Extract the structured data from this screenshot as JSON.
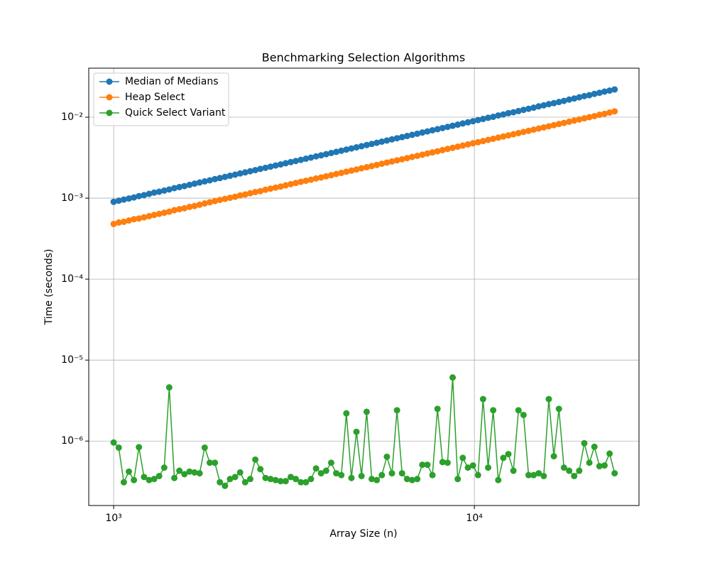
{
  "chart_data": {
    "type": "line",
    "title": "Benchmarking Selection Algorithms",
    "x_label": "Array Size (n)",
    "y_label": "Time (seconds)",
    "x_scale": "log",
    "y_scale": "log",
    "grid": true,
    "legend": "upper left",
    "xlim": [
      853,
      28600
    ],
    "ylim": [
      1.6e-07,
      0.0403
    ],
    "xticks": [
      {
        "value": 1000,
        "label": "10³"
      },
      {
        "value": 10000,
        "label": "10⁴"
      }
    ],
    "yticks": [
      {
        "value": 1e-06,
        "label": "10⁻⁶"
      },
      {
        "value": 1e-05,
        "label": "10⁻⁵"
      },
      {
        "value": 0.0001,
        "label": "10⁻⁴"
      },
      {
        "value": 0.001,
        "label": "10⁻³"
      },
      {
        "value": 0.01,
        "label": "10⁻²"
      }
    ],
    "x": [
      1000,
      1033,
      1067,
      1102,
      1138,
      1175,
      1214,
      1254,
      1295,
      1337,
      1381,
      1426,
      1473,
      1521,
      1571,
      1623,
      1676,
      1731,
      1788,
      1847,
      1908,
      1970,
      2035,
      2102,
      2171,
      2242,
      2315,
      2391,
      2470,
      2551,
      2636,
      2722,
      2811,
      2903,
      2998,
      3097,
      3198,
      3303,
      3411,
      3523,
      3640,
      3759,
      3882,
      4009,
      4141,
      4277,
      4417,
      4562,
      4711,
      4866,
      5028,
      5193,
      5363,
      5539,
      5720,
      5908,
      6102,
      6302,
      6508,
      6722,
      6945,
      7173,
      7408,
      7651,
      7902,
      8161,
      8429,
      8705,
      8991,
      9286,
      9596,
      9911,
      10236,
      10571,
      10918,
      11276,
      11646,
      12028,
      12422,
      12830,
      13250,
      13685,
      14134,
      14597,
      15076,
      15570,
      16081,
      16608,
      17153,
      17715,
      18310,
      18910,
      19530,
      20171,
      20832,
      21515,
      22221,
      22949,
      23702,
      24480
    ],
    "series": [
      {
        "name": "Median of Medians",
        "color": "#1f77b4",
        "values": [
          0.0009,
          0.00093,
          0.00096,
          0.00099,
          0.00102,
          0.00106,
          0.00109,
          0.00113,
          0.00117,
          0.0012,
          0.00124,
          0.00128,
          0.00133,
          0.00137,
          0.00141,
          0.00146,
          0.00151,
          0.00156,
          0.00161,
          0.00166,
          0.00172,
          0.00177,
          0.00183,
          0.00189,
          0.00195,
          0.00202,
          0.00208,
          0.00215,
          0.00222,
          0.0023,
          0.00237,
          0.00245,
          0.00253,
          0.00261,
          0.0027,
          0.00279,
          0.00288,
          0.00297,
          0.00307,
          0.00317,
          0.00328,
          0.00338,
          0.00349,
          0.00361,
          0.00373,
          0.00385,
          0.00398,
          0.00411,
          0.00424,
          0.00438,
          0.00453,
          0.00467,
          0.00483,
          0.00499,
          0.00515,
          0.00532,
          0.00549,
          0.00567,
          0.00586,
          0.00605,
          0.00625,
          0.00646,
          0.00667,
          0.00689,
          0.00711,
          0.00734,
          0.00759,
          0.00783,
          0.00809,
          0.00836,
          0.00864,
          0.00892,
          0.00921,
          0.00951,
          0.00983,
          0.0101,
          0.0105,
          0.0108,
          0.0112,
          0.0115,
          0.0119,
          0.0123,
          0.0127,
          0.0131,
          0.0136,
          0.014,
          0.0145,
          0.0149,
          0.0154,
          0.0159,
          0.0165,
          0.017,
          0.0176,
          0.0182,
          0.0187,
          0.0194,
          0.02,
          0.0207,
          0.0213,
          0.022
        ]
      },
      {
        "name": "Heap Select",
        "color": "#ff7f0e",
        "values": [
          0.00048,
          0.0005,
          0.00051,
          0.00053,
          0.00055,
          0.00056,
          0.00058,
          0.0006,
          0.00062,
          0.00064,
          0.00066,
          0.00068,
          0.00071,
          0.00073,
          0.00075,
          0.00078,
          0.0008,
          0.00083,
          0.00086,
          0.00089,
          0.00092,
          0.00095,
          0.00098,
          0.00101,
          0.00104,
          0.00108,
          0.00111,
          0.00115,
          0.00119,
          0.00122,
          0.00127,
          0.00131,
          0.00135,
          0.00139,
          0.00144,
          0.00149,
          0.00154,
          0.00159,
          0.00164,
          0.00169,
          0.00175,
          0.0018,
          0.00186,
          0.00192,
          0.00199,
          0.00205,
          0.00212,
          0.00219,
          0.00226,
          0.00234,
          0.00241,
          0.00249,
          0.00257,
          0.00266,
          0.00275,
          0.00284,
          0.00293,
          0.00302,
          0.00312,
          0.00323,
          0.00333,
          0.00344,
          0.00356,
          0.00367,
          0.00379,
          0.00392,
          0.00405,
          0.00418,
          0.00432,
          0.00446,
          0.00461,
          0.00476,
          0.00491,
          0.00507,
          0.00524,
          0.00541,
          0.00559,
          0.00577,
          0.00596,
          0.00616,
          0.00636,
          0.00657,
          0.00678,
          0.00701,
          0.00724,
          0.00747,
          0.00772,
          0.00797,
          0.00823,
          0.0085,
          0.00879,
          0.00908,
          0.00937,
          0.00968,
          0.01,
          0.0103,
          0.0107,
          0.011,
          0.0114,
          0.0118
        ]
      },
      {
        "name": "Quick Select Variant",
        "color": "#2ca02c",
        "values": [
          9.6e-07,
          8.3e-07,
          3.1e-07,
          4.2e-07,
          3.3e-07,
          8.4e-07,
          3.6e-07,
          3.3e-07,
          3.4e-07,
          3.7e-07,
          4.7e-07,
          4.6e-06,
          3.5e-07,
          4.3e-07,
          3.9e-07,
          4.2e-07,
          4.1e-07,
          4e-07,
          8.3e-07,
          5.4e-07,
          5.4e-07,
          3.1e-07,
          2.8e-07,
          3.4e-07,
          3.6e-07,
          4.1e-07,
          3.1e-07,
          3.4e-07,
          5.9e-07,
          4.5e-07,
          3.5e-07,
          3.4e-07,
          3.3e-07,
          3.2e-07,
          3.2e-07,
          3.6e-07,
          3.4e-07,
          3.1e-07,
          3.1e-07,
          3.4e-07,
          4.6e-07,
          4e-07,
          4.3e-07,
          5.4e-07,
          4e-07,
          3.8e-07,
          2.2e-06,
          3.5e-07,
          1.3e-06,
          3.7e-07,
          2.3e-06,
          3.4e-07,
          3.3e-07,
          3.8e-07,
          6.4e-07,
          4e-07,
          2.4e-06,
          4e-07,
          3.4e-07,
          3.3e-07,
          3.4e-07,
          5.1e-07,
          5.1e-07,
          3.8e-07,
          2.5e-06,
          5.5e-07,
          5.4e-07,
          6.1e-06,
          3.4e-07,
          6.2e-07,
          4.7e-07,
          5e-07,
          3.8e-07,
          3.3e-06,
          4.7e-07,
          2.4e-06,
          3.3e-07,
          6.2e-07,
          6.9e-07,
          4.3e-07,
          2.4e-06,
          2.1e-06,
          3.8e-07,
          3.8e-07,
          4e-07,
          3.7e-07,
          3.3e-06,
          6.5e-07,
          2.5e-06,
          4.7e-07,
          4.3e-07,
          3.7e-07,
          4.3e-07,
          9.4e-07,
          5.4e-07,
          8.5e-07,
          4.9e-07,
          5e-07,
          7e-07,
          4e-07
        ]
      }
    ]
  }
}
